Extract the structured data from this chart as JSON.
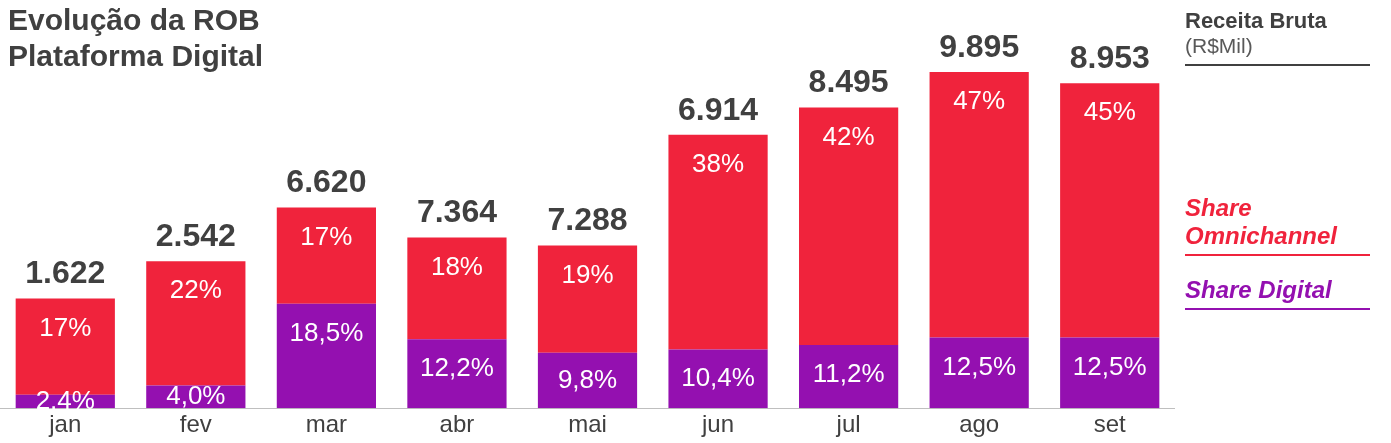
{
  "chart_data": {
    "type": "bar",
    "title": "Evolução da ROB Plataforma Digital",
    "legend_title": "Receita Bruta",
    "annotations": [
      "(R$Mil)",
      {
        "text": "1.622",
        "x": "jan",
        "y": 19.4
      },
      {
        "text": "2.542",
        "x": "fev",
        "y": 26
      },
      {
        "text": "6.620",
        "x": "mar",
        "y": 35.5
      },
      {
        "text": "7.364",
        "x": "abr",
        "y": 30.2
      },
      {
        "text": "7.288",
        "x": "mai",
        "y": 28.8
      },
      {
        "text": "6.914",
        "x": "jun",
        "y": 48.4
      },
      {
        "text": "8.495",
        "x": "jul",
        "y": 53.2
      },
      {
        "text": "9.895",
        "x": "ago",
        "y": 59.5
      },
      {
        "text": "8.953",
        "x": "set",
        "y": 57.5
      }
    ],
    "categories": [
      "jan",
      "fev",
      "mar",
      "abr",
      "mai",
      "jun",
      "jul",
      "ago",
      "set"
    ],
    "stacked": true,
    "legend": "right",
    "tick_labels": "x",
    "series": [
      {
        "name": "Share Digital",
        "color": "#9410b0",
        "values": [
          2.4,
          4.0,
          18.5,
          12.2,
          9.8,
          10.4,
          11.2,
          12.5,
          12.5
        ],
        "value_labels": [
          "2,4%",
          "4,0%",
          "18,5%",
          "12,2%",
          "9,8%",
          "10,4%",
          "11,2%",
          "12,5%",
          "12,5%"
        ]
      },
      {
        "name": "Share Omnichannel",
        "color": "#f0233c",
        "values": [
          17,
          22,
          17,
          18,
          19,
          38,
          42,
          47,
          45
        ],
        "value_labels": [
          "17%",
          "22%",
          "17%",
          "18%",
          "19%",
          "38%",
          "42%",
          "47%",
          "45%"
        ]
      }
    ]
  }
}
